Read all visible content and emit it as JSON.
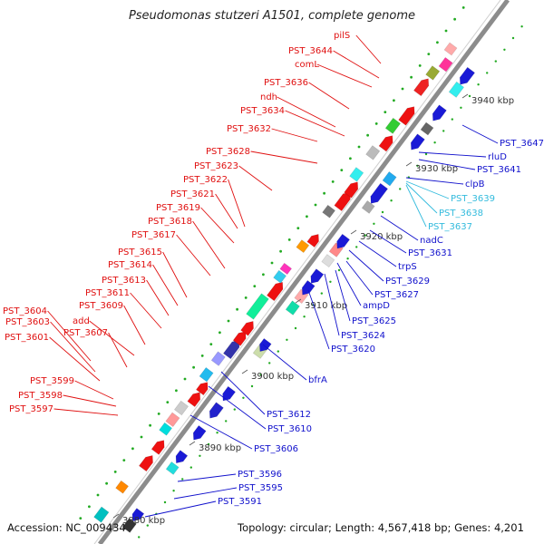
{
  "title": "Pseudomonas stutzeri A1501, complete genome",
  "accession": "Accession: NC_009434",
  "summary": "Topology: circular; Length: 4,567,418 bp; Genes: 4,201",
  "ticks": [
    "3880 kbp",
    "3890 kbp",
    "3900 kbp",
    "3910 kbp",
    "3920 kbp",
    "3930 kbp",
    "3940 kbp"
  ],
  "left_labels": [
    "PST_3604",
    "PST_3603",
    "PST_3601",
    "PST_3599",
    "PST_3598",
    "PST_3597",
    "PST_3607",
    "add",
    "PST_3609",
    "PST_3611",
    "PST_3613",
    "PST_3614",
    "PST_3615",
    "PST_3617",
    "PST_3618",
    "PST_3619",
    "PST_3621",
    "PST_3622",
    "PST_3623",
    "PST_3628",
    "PST_3632",
    "PST_3634",
    "ndh",
    "PST_3636",
    "comL",
    "PST_3644",
    "pilS"
  ],
  "right_labels": [
    "PST_3647",
    "rluD",
    "PST_3641",
    "clpB",
    "PST_3639",
    "PST_3638",
    "PST_3637",
    "nadC",
    "PST_3631",
    "trpS",
    "PST_3629",
    "PST_3627",
    "ampD",
    "PST_3625",
    "PST_3624",
    "PST_3620",
    "bfrA",
    "PST_3612",
    "PST_3610",
    "PST_3606",
    "PST_3596",
    "PST_3595",
    "PST_3591"
  ],
  "colors": {
    "backbone": "#8c8c8c",
    "forward_label": "#e01010",
    "reverse_label": "#1010cc",
    "rna_label": "#33bbdd",
    "cds_forward": "#ee1111",
    "cds_reverse": "#1a1ad6",
    "gap_dot": "#22aa22"
  }
}
